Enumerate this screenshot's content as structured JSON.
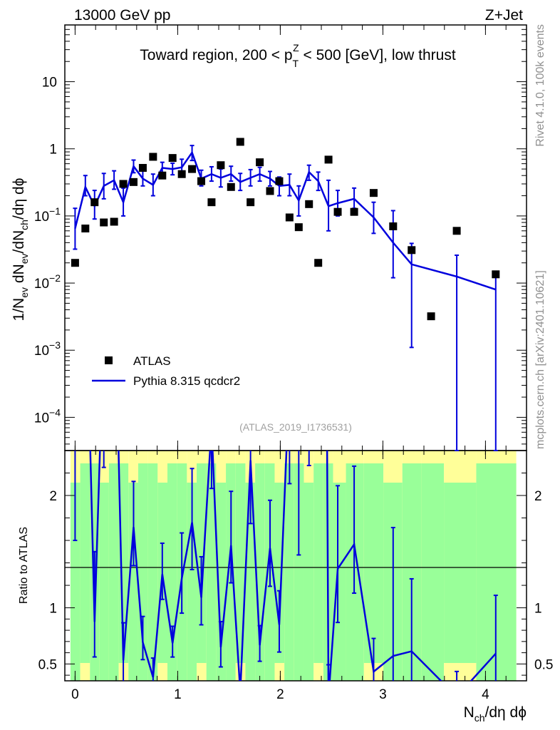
{
  "header": {
    "left": "13000 GeV pp",
    "right": "Z+Jet"
  },
  "side_labels": {
    "rivet": "Rivet 4.1.0,  100k events",
    "mcplots": "mcplots.cern.ch [arXiv:2401.10621]"
  },
  "chart_data": {
    "type": "scatter",
    "title": {
      "pre": "Toward region, 200 < p",
      "sup": "Z",
      "sub": "T",
      "post": " < 500 [GeV], low thrust"
    },
    "analysis_id": "(ATLAS_2019_I1736531)",
    "xlabel": {
      "a": "N",
      "a_sub": "ch",
      "b": "/dη dϕ"
    },
    "ylabel": {
      "a": "1/N",
      "a_sub": "ev",
      "b": " dN",
      "b_sub": "ev",
      "c": "/dN",
      "c_sub": "ch",
      "d": "/dη dϕ"
    },
    "ratio_ylabel": "Ratio to ATLAS",
    "xlim": [
      -0.1,
      4.4
    ],
    "ylim": [
      3.2e-05,
      70
    ],
    "yscale": "log",
    "ratio_ylim": [
      0.35,
      2.4
    ],
    "x_ticks": [
      {
        "v": 0,
        "label": "0"
      },
      {
        "v": 1,
        "label": "1"
      },
      {
        "v": 2,
        "label": "2"
      },
      {
        "v": 3,
        "label": "3"
      },
      {
        "v": 4,
        "label": "4"
      }
    ],
    "y_ticks": [
      {
        "v": 0.0001,
        "base": "10",
        "exp": "−4"
      },
      {
        "v": 0.001,
        "base": "10",
        "exp": "−3"
      },
      {
        "v": 0.01,
        "base": "10",
        "exp": "−2"
      },
      {
        "v": 0.1,
        "base": "10",
        "exp": "−1"
      },
      {
        "v": 1,
        "base": "1",
        "exp": ""
      },
      {
        "v": 10,
        "base": "10",
        "exp": ""
      }
    ],
    "ratio_ticks": [
      {
        "v": 0.5,
        "label": "0.5"
      },
      {
        "v": 1,
        "label": "1"
      },
      {
        "v": 2,
        "label": "2"
      }
    ],
    "legend": {
      "data_label": "ATLAS",
      "mc_label": "Pythia 8.315 qcdcr2",
      "position": "lower-left"
    },
    "colors": {
      "mc": "#0000dd",
      "data": "#000000",
      "band_inner": "#99ff99",
      "band_outer": "#ffff99"
    },
    "data": {
      "x": [
        0,
        0.1,
        0.19,
        0.28,
        0.38,
        0.47,
        0.57,
        0.66,
        0.76,
        0.85,
        0.95,
        1.04,
        1.14,
        1.23,
        1.33,
        1.42,
        1.52,
        1.61,
        1.71,
        1.8,
        1.9,
        1.99,
        2.09,
        2.18,
        2.28,
        2.37,
        2.47,
        2.56,
        2.72,
        2.91,
        3.1,
        3.28,
        3.47,
        3.72,
        4.1
      ],
      "y": [
        0.02,
        0.065,
        0.16,
        0.08,
        0.082,
        0.3,
        0.32,
        0.52,
        0.76,
        0.4,
        0.73,
        0.42,
        0.5,
        0.33,
        0.16,
        0.57,
        0.27,
        1.27,
        0.16,
        0.63,
        0.235,
        0.33,
        0.095,
        0.068,
        0.15,
        0.02,
        0.69,
        0.115,
        0.115,
        0.22,
        0.07,
        0.031,
        0.0032,
        0.06,
        0.0135
      ]
    },
    "mc": {
      "x": [
        0,
        0.1,
        0.19,
        0.28,
        0.38,
        0.47,
        0.57,
        0.66,
        0.76,
        0.85,
        0.95,
        1.04,
        1.14,
        1.23,
        1.33,
        1.42,
        1.52,
        1.61,
        1.71,
        1.8,
        1.9,
        1.99,
        2.09,
        2.18,
        2.28,
        2.37,
        2.47,
        2.56,
        2.72,
        2.91,
        3.1,
        3.28,
        3.72,
        4.1
      ],
      "y": [
        0.065,
        0.27,
        0.14,
        0.28,
        0.34,
        0.16,
        0.55,
        0.36,
        0.29,
        0.52,
        0.5,
        0.53,
        0.88,
        0.36,
        0.42,
        0.37,
        0.42,
        0.32,
        0.37,
        0.42,
        0.36,
        0.28,
        0.29,
        0.17,
        0.45,
        0.33,
        0.14,
        0.155,
        0.18,
        0.095,
        0.04,
        0.019,
        0.0125,
        0.008
      ],
      "ylo": [
        0.032,
        0.2,
        0.09,
        0.18,
        0.25,
        0.1,
        0.44,
        0.28,
        0.2,
        0.43,
        0.41,
        0.4,
        0.67,
        0.28,
        0.33,
        0.27,
        0.33,
        0.24,
        0.28,
        0.33,
        0.28,
        0.2,
        0.2,
        0.1,
        0.34,
        0.24,
        0.06,
        0.1,
        0.13,
        0.055,
        0.012,
        0.0011,
        3e-05,
        3e-05
      ],
      "yhi": [
        0.13,
        0.4,
        0.24,
        0.43,
        0.47,
        0.26,
        0.68,
        0.48,
        0.42,
        0.63,
        0.61,
        0.7,
        1.12,
        0.48,
        0.54,
        0.5,
        0.55,
        0.43,
        0.49,
        0.53,
        0.46,
        0.38,
        0.42,
        0.28,
        0.57,
        0.45,
        0.34,
        0.24,
        0.26,
        0.16,
        0.12,
        0.039,
        0.026,
        0.015
      ]
    }
  }
}
